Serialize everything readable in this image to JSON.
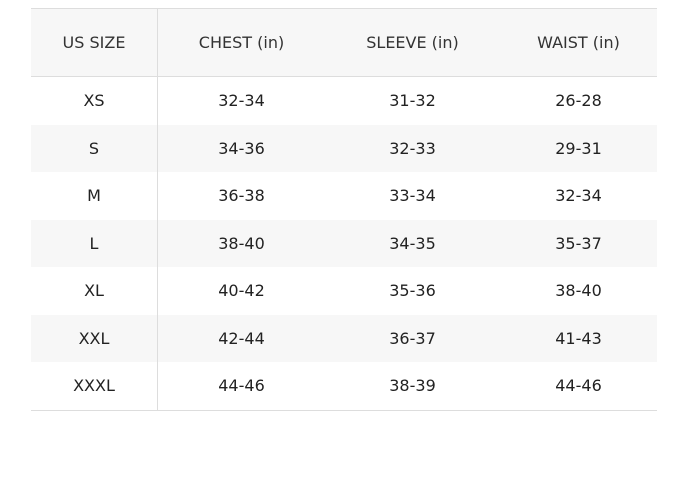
{
  "table": {
    "headers": [
      "US SIZE",
      "CHEST (in)",
      "SLEEVE (in)",
      "WAIST (in)"
    ],
    "rows": [
      [
        "XS",
        "32-34",
        "31-32",
        "26-28"
      ],
      [
        "S",
        "34-36",
        "32-33",
        "29-31"
      ],
      [
        "M",
        "36-38",
        "33-34",
        "32-34"
      ],
      [
        "L",
        "38-40",
        "34-35",
        "35-37"
      ],
      [
        "XL",
        "40-42",
        "35-36",
        "38-40"
      ],
      [
        "XXL",
        "42-44",
        "36-37",
        "41-43"
      ],
      [
        "XXXL",
        "44-46",
        "38-39",
        "44-46"
      ]
    ]
  },
  "colors": {
    "stripe": "#f7f7f7",
    "border": "#dddddd"
  }
}
